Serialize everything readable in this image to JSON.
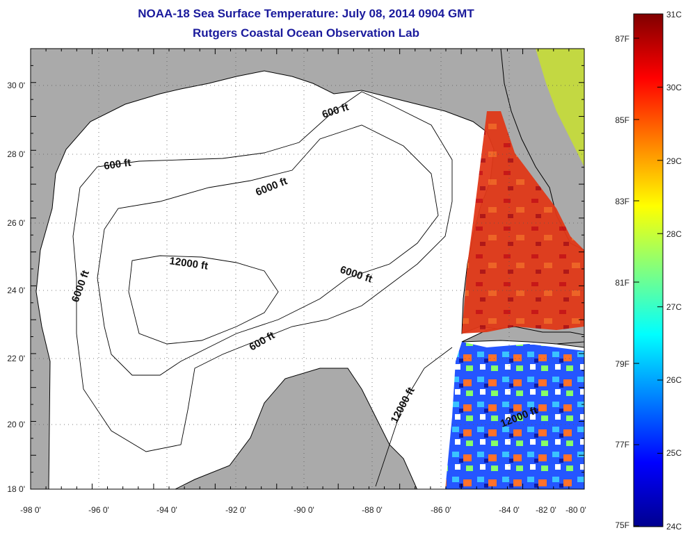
{
  "title": "NOAA-18 Sea Surface Temperature:  July 08, 2014 0904 GMT",
  "subtitle": "Rutgers Coastal Ocean Observation Lab",
  "axes": {
    "lon_labels": [
      "-98 0'",
      "-96 0'",
      "-94 0'",
      "-92 0'",
      "-90 0'",
      "-88 0'",
      "-86 0'",
      "-84 0'",
      "-82 0'",
      "-80 0'"
    ],
    "lat_labels": [
      "30 0'",
      "28 0'",
      "26 0'",
      "24 0'",
      "22 0'",
      "20 0'",
      "18 0'"
    ]
  },
  "contour_labels": {
    "c600_north": "600 ft",
    "c600_west": "600 ft",
    "c6000_north": "6000 ft",
    "c6000_west": "6000 ft",
    "c12000_center": "12000 ft",
    "c6000_east": "6000 ft",
    "c600_south": "600 ft",
    "c12000_southeast": "12000 ft",
    "c12000_caribbean": "12000 ft"
  },
  "colorbar": {
    "celsius_labels": [
      "31C",
      "30C",
      "29C",
      "28C",
      "27C",
      "26C",
      "25C",
      "24C"
    ],
    "fahrenheit_labels": [
      "87F",
      "85F",
      "83F",
      "81F",
      "79F",
      "77F",
      "75F"
    ],
    "colors": [
      "#00008f",
      "#0000ff",
      "#0080ff",
      "#00ffff",
      "#80ff80",
      "#ffff00",
      "#ff8000",
      "#ff0000",
      "#800000"
    ]
  },
  "colors": {
    "land": "#aaaaaa",
    "ocean": "#ffffff",
    "title": "#1a1a9c"
  }
}
